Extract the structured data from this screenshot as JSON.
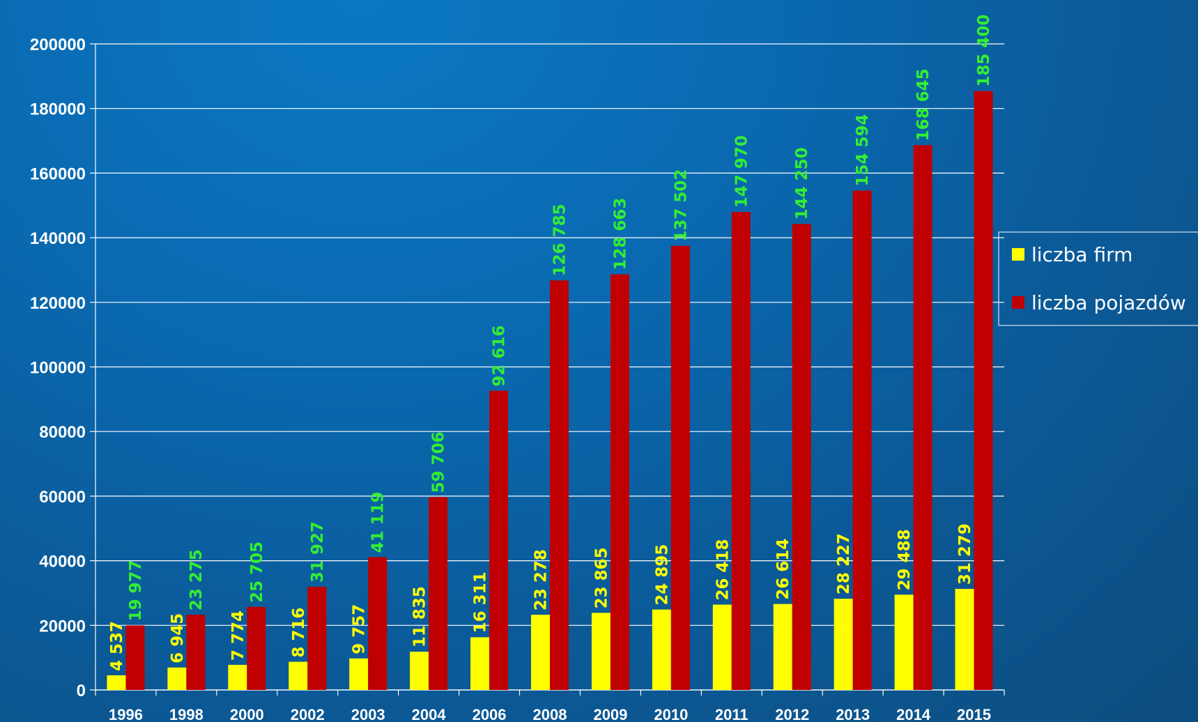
{
  "chart_data": {
    "type": "bar",
    "title": "",
    "xlabel": "",
    "ylabel": "",
    "ylim": [
      0,
      200000
    ],
    "yticks": [
      "0",
      "20000",
      "40000",
      "60000",
      "80000",
      "100000",
      "120000",
      "140000",
      "160000",
      "180000",
      "200000"
    ],
    "grid": true,
    "legend_position": "right",
    "categories": [
      "1996",
      "1998",
      "2000",
      "2002",
      "2003",
      "2004",
      "2006",
      "2008",
      "2009",
      "2010",
      "2011",
      "2012",
      "2013",
      "2014",
      "2015"
    ],
    "series": [
      {
        "name": "liczba firm",
        "color": "#ffff00",
        "label_color": "#ffff00",
        "values": [
          4537,
          6945,
          7774,
          8716,
          9757,
          11835,
          16311,
          23278,
          23865,
          24895,
          26418,
          26614,
          28227,
          29488,
          31279
        ],
        "labels": [
          "4 537",
          "6 945",
          "7 774",
          "8 716",
          "9 757",
          "11 835",
          "16 311",
          "23 278",
          "23 865",
          "24 895",
          "26 418",
          "26 614",
          "28 227",
          "29 488",
          "31 279"
        ]
      },
      {
        "name": "liczba pojazdów",
        "color": "#c00000",
        "label_color": "#33ee33",
        "values": [
          19977,
          23275,
          25705,
          31927,
          41119,
          59706,
          92616,
          126785,
          128663,
          137502,
          147970,
          144250,
          154594,
          168645,
          185400
        ],
        "labels": [
          "19 977",
          "23 275",
          "25 705",
          "31 927",
          "41 119",
          "59 706",
          "92 616",
          "126 785",
          "128 663",
          "137 502",
          "147 970",
          "144 250",
          "154 594",
          "168 645",
          "185 400"
        ]
      }
    ]
  }
}
